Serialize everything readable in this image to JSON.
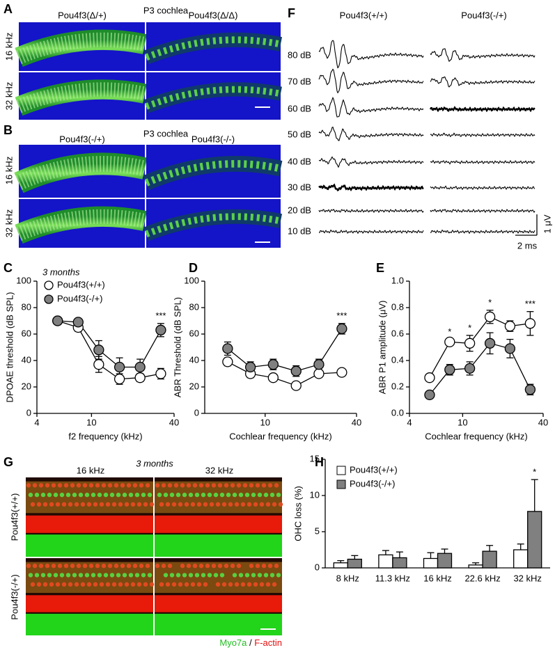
{
  "figure": {
    "a": {
      "label": "A",
      "title": "P3 cochlea",
      "columns": [
        "Pou4f3(Δ/+)",
        "Pou4f3(Δ/Δ)"
      ],
      "rows": [
        "16 kHz",
        "32 kHz"
      ]
    },
    "b": {
      "label": "B",
      "title": "P3 cochlea",
      "columns": [
        "Pou4f3(-/+)",
        "Pou4f3(-/-)"
      ],
      "rows": [
        "16 kHz",
        "32 kHz"
      ]
    },
    "f": {
      "label": "F",
      "columns": [
        "Pou4f3(+/+)",
        "Pou4f3(-/+)"
      ],
      "rows": [
        "80 dB",
        "70 dB",
        "60 dB",
        "50 dB",
        "40 dB",
        "30 dB",
        "20 dB",
        "10 dB"
      ],
      "scale_y": "1 μV",
      "scale_x": "2 ms"
    },
    "g": {
      "label": "G",
      "title": "3 months",
      "columns": [
        "16 kHz",
        "32 kHz"
      ],
      "rows": [
        "Pou4f3(+/+)",
        "Pou4f3(-/+)"
      ],
      "stain_1": "Myo7a",
      "separator": "/",
      "stain_2": "F-actin"
    }
  },
  "chart_data": [
    {
      "type": "line",
      "panel_label": "C",
      "subtitle": "3 months",
      "xlabel": "f2 frequency (kHz)",
      "ylabel": "DPOAE threshold (dB SPL)",
      "log_x": true,
      "xlim": [
        4,
        40
      ],
      "xticks": [
        4,
        10,
        40
      ],
      "ylim": [
        0,
        100
      ],
      "yticks": [
        0,
        20,
        40,
        60,
        80,
        100
      ],
      "x": [
        5.66,
        8,
        11.3,
        16,
        22.6,
        32
      ],
      "series": [
        {
          "name": "Pou4f3(+/+)",
          "color": "#ffffff",
          "values": [
            70,
            65,
            37,
            26,
            27,
            30
          ],
          "errors": [
            2,
            3,
            6,
            4,
            3,
            4
          ]
        },
        {
          "name": "Pou4f3(-/+)",
          "color": "#808080",
          "values": [
            70,
            69,
            48,
            35,
            35,
            63
          ],
          "errors": [
            2,
            2,
            7,
            7,
            6,
            5
          ]
        }
      ],
      "significance": [
        null,
        null,
        null,
        null,
        null,
        "***"
      ]
    },
    {
      "type": "line",
      "panel_label": "D",
      "xlabel": "Cochlear frequency (kHz)",
      "ylabel": "ABR Threshold (dB SPL)",
      "log_x": true,
      "xlim": [
        4,
        40
      ],
      "xticks": [
        10,
        40
      ],
      "ylim": [
        0,
        100
      ],
      "yticks": [
        0,
        20,
        40,
        60,
        80,
        100
      ],
      "x": [
        5.66,
        8,
        11.3,
        16,
        22.6,
        32
      ],
      "series": [
        {
          "color": "#ffffff",
          "values": [
            39,
            30,
            27,
            21,
            30,
            31
          ],
          "errors": [
            3,
            3,
            2,
            2,
            2,
            2
          ]
        },
        {
          "color": "#808080",
          "values": [
            49,
            35,
            37,
            32,
            37,
            64
          ],
          "errors": [
            5,
            4,
            4,
            4,
            4,
            4
          ]
        }
      ],
      "significance": [
        null,
        null,
        null,
        null,
        null,
        "***"
      ]
    },
    {
      "type": "line",
      "panel_label": "E",
      "xlabel": "Cochlear frequency (kHz)",
      "ylabel": "ABR P1 amplitude (μV)",
      "log_x": true,
      "xlim": [
        4,
        40
      ],
      "xticks": [
        4,
        10,
        40
      ],
      "ylim": [
        0,
        1
      ],
      "yticks": [
        {
          "value": 0,
          "label": "0.0"
        },
        0.2,
        0.4,
        0.6,
        0.8,
        {
          "value": 1,
          "label": "1.0"
        }
      ],
      "x": [
        5.66,
        8,
        11.3,
        16,
        22.6,
        32
      ],
      "series": [
        {
          "color": "#ffffff",
          "values": [
            0.27,
            0.54,
            0.53,
            0.73,
            0.66,
            0.68
          ],
          "errors": [
            0.02,
            0.02,
            0.06,
            0.05,
            0.04,
            0.09
          ]
        },
        {
          "color": "#808080",
          "values": [
            0.14,
            0.33,
            0.34,
            0.53,
            0.49,
            0.18
          ],
          "errors": [
            0.02,
            0.04,
            0.05,
            0.08,
            0.07,
            0.04
          ]
        }
      ],
      "significance": [
        null,
        "*",
        "*",
        "*",
        null,
        "***"
      ]
    },
    {
      "type": "bar",
      "panel_label": "H",
      "ylabel": "OHC loss (%)",
      "ylim": [
        0,
        15
      ],
      "yticks": [
        0,
        5,
        10,
        15
      ],
      "categories": [
        "8 kHz",
        "11.3 kHz",
        "16 kHz",
        "22.6 kHz",
        "32 kHz"
      ],
      "series": [
        {
          "name": "Pou4f3(+/+)",
          "color": "#ffffff",
          "values": [
            0.7,
            1.8,
            1.3,
            0.4,
            2.5
          ],
          "errors": [
            0.3,
            0.6,
            0.8,
            0.3,
            0.8
          ]
        },
        {
          "name": "Pou4f3(-/+)",
          "color": "#808080",
          "values": [
            1.2,
            1.4,
            2.0,
            2.3,
            7.8
          ],
          "errors": [
            0.5,
            0.8,
            0.6,
            0.8,
            4.4
          ]
        }
      ],
      "significance": [
        null,
        null,
        null,
        null,
        "*"
      ]
    }
  ]
}
